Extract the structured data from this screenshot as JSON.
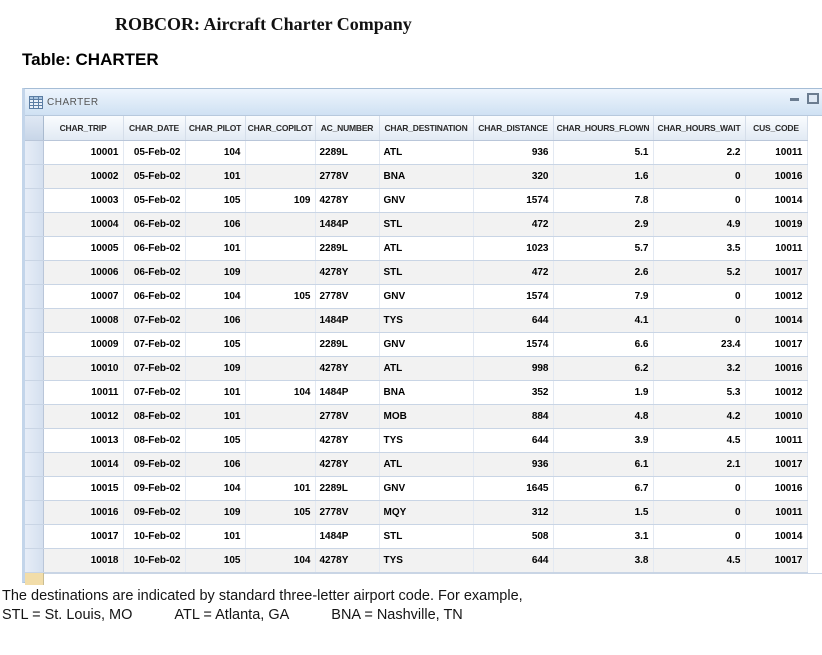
{
  "page": {
    "title": "ROBCOR: Aircraft Charter Company",
    "table_label": "Table: CHARTER",
    "footnote_line1": "The destinations are indicated by standard three-letter airport code. For example,",
    "footnote_line2_parts": [
      "STL = St. Louis, MO",
      "ATL = Atlanta, GA",
      "BNA = Nashville, TN"
    ]
  },
  "window": {
    "title": "CHARTER",
    "icon": "table-grid-icon",
    "controls": [
      {
        "name": "minimize-button",
        "icon": "minimize-icon"
      },
      {
        "name": "maximize-button",
        "icon": "maximize-icon"
      }
    ]
  },
  "colors": {
    "titlebar_top": "#eef5fd",
    "titlebar_bottom": "#cfe1f3",
    "grid_line": "#c9d5e5",
    "alt_row": "#f2f2f2",
    "selector": "#d5e0ef",
    "new_record_marker": "#f2dda9",
    "window_border": "#a5bdd6"
  },
  "table": {
    "columns": [
      {
        "key": "trip",
        "label": "CHAR_TRIP",
        "align": "right"
      },
      {
        "key": "date",
        "label": "CHAR_DATE",
        "align": "right"
      },
      {
        "key": "pilot",
        "label": "CHAR_PILOT",
        "align": "right"
      },
      {
        "key": "copilot",
        "label": "CHAR_COPILOT",
        "align": "right"
      },
      {
        "key": "ac",
        "label": "AC_NUMBER",
        "align": "left"
      },
      {
        "key": "dest",
        "label": "CHAR_DESTINATION",
        "align": "left"
      },
      {
        "key": "dist",
        "label": "CHAR_DISTANCE",
        "align": "right"
      },
      {
        "key": "flown",
        "label": "CHAR_HOURS_FLOWN",
        "align": "right"
      },
      {
        "key": "wait",
        "label": "CHAR_HOURS_WAIT",
        "align": "right"
      },
      {
        "key": "cus",
        "label": "CUS_CODE",
        "align": "right"
      }
    ],
    "rows": [
      [
        "10001",
        "05-Feb-02",
        "104",
        "",
        "2289L",
        "ATL",
        "936",
        "5.1",
        "2.2",
        "10011"
      ],
      [
        "10002",
        "05-Feb-02",
        "101",
        "",
        "2778V",
        "BNA",
        "320",
        "1.6",
        "0",
        "10016"
      ],
      [
        "10003",
        "05-Feb-02",
        "105",
        "109",
        "4278Y",
        "GNV",
        "1574",
        "7.8",
        "0",
        "10014"
      ],
      [
        "10004",
        "06-Feb-02",
        "106",
        "",
        "1484P",
        "STL",
        "472",
        "2.9",
        "4.9",
        "10019"
      ],
      [
        "10005",
        "06-Feb-02",
        "101",
        "",
        "2289L",
        "ATL",
        "1023",
        "5.7",
        "3.5",
        "10011"
      ],
      [
        "10006",
        "06-Feb-02",
        "109",
        "",
        "4278Y",
        "STL",
        "472",
        "2.6",
        "5.2",
        "10017"
      ],
      [
        "10007",
        "06-Feb-02",
        "104",
        "105",
        "2778V",
        "GNV",
        "1574",
        "7.9",
        "0",
        "10012"
      ],
      [
        "10008",
        "07-Feb-02",
        "106",
        "",
        "1484P",
        "TYS",
        "644",
        "4.1",
        "0",
        "10014"
      ],
      [
        "10009",
        "07-Feb-02",
        "105",
        "",
        "2289L",
        "GNV",
        "1574",
        "6.6",
        "23.4",
        "10017"
      ],
      [
        "10010",
        "07-Feb-02",
        "109",
        "",
        "4278Y",
        "ATL",
        "998",
        "6.2",
        "3.2",
        "10016"
      ],
      [
        "10011",
        "07-Feb-02",
        "101",
        "104",
        "1484P",
        "BNA",
        "352",
        "1.9",
        "5.3",
        "10012"
      ],
      [
        "10012",
        "08-Feb-02",
        "101",
        "",
        "2778V",
        "MOB",
        "884",
        "4.8",
        "4.2",
        "10010"
      ],
      [
        "10013",
        "08-Feb-02",
        "105",
        "",
        "4278Y",
        "TYS",
        "644",
        "3.9",
        "4.5",
        "10011"
      ],
      [
        "10014",
        "09-Feb-02",
        "106",
        "",
        "4278Y",
        "ATL",
        "936",
        "6.1",
        "2.1",
        "10017"
      ],
      [
        "10015",
        "09-Feb-02",
        "104",
        "101",
        "2289L",
        "GNV",
        "1645",
        "6.7",
        "0",
        "10016"
      ],
      [
        "10016",
        "09-Feb-02",
        "109",
        "105",
        "2778V",
        "MQY",
        "312",
        "1.5",
        "0",
        "10011"
      ],
      [
        "10017",
        "10-Feb-02",
        "101",
        "",
        "1484P",
        "STL",
        "508",
        "3.1",
        "0",
        "10014"
      ],
      [
        "10018",
        "10-Feb-02",
        "105",
        "104",
        "4278Y",
        "TYS",
        "644",
        "3.8",
        "4.5",
        "10017"
      ]
    ]
  }
}
